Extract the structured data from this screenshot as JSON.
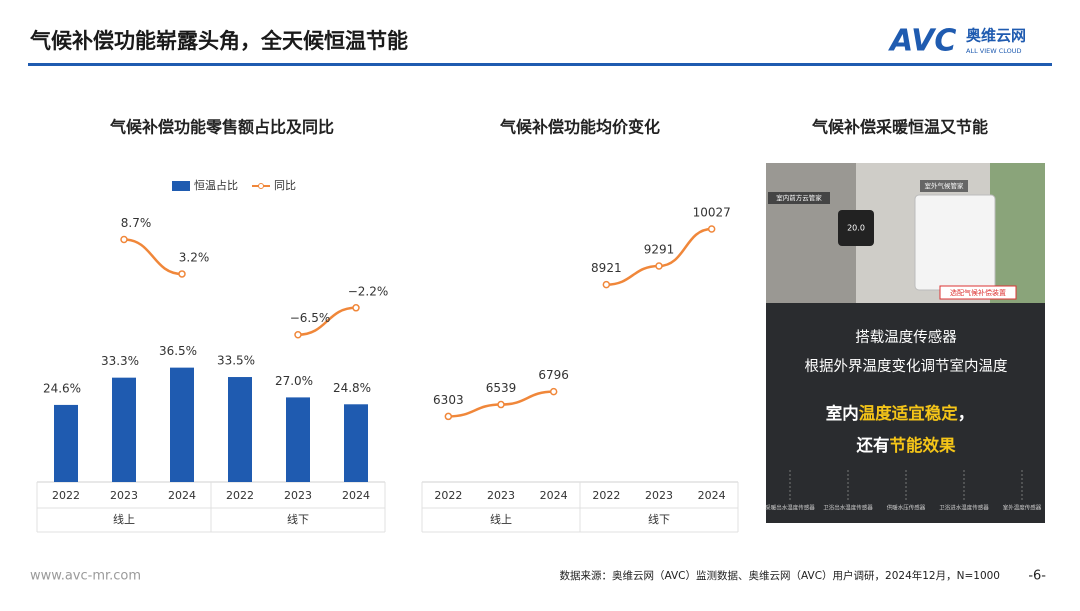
{
  "header": {
    "title": "气候补偿功能崭露头角，全天候恒温节能",
    "logo": "AVC",
    "brand": "奥维云网",
    "brand_en": "ALL VIEW CLOUD"
  },
  "chart_data": [
    {
      "type": "bar",
      "title": "气候补偿功能零售额占比及同比",
      "categories": [
        "2022",
        "2023",
        "2024",
        "2022",
        "2023",
        "2024"
      ],
      "groups": [
        "线上",
        "线下"
      ],
      "ylim": [
        0,
        90
      ],
      "y2lim": [
        -30,
        15
      ],
      "series": [
        {
          "name": "恒温占比",
          "color": "#1f5bb0",
          "values": [
            24.6,
            33.3,
            36.5,
            33.5,
            27.0,
            24.8
          ],
          "value_labels": [
            "24.6%",
            "33.3%",
            "36.5%",
            "33.5%",
            "27.0%",
            "24.8%"
          ]
        },
        {
          "name": "同比",
          "type": "line",
          "axis": "y2",
          "color": "#f0873a",
          "values": [
            null,
            8.7,
            3.2,
            null,
            -6.5,
            -2.2
          ],
          "value_labels": [
            null,
            "8.7%",
            "3.2%",
            null,
            "−6.5%",
            "−2.2%"
          ]
        }
      ]
    },
    {
      "type": "line",
      "title": "气候补偿功能均价变化",
      "categories": [
        "2022",
        "2023",
        "2024",
        "2022",
        "2023",
        "2024"
      ],
      "groups": [
        "线上",
        "线下"
      ],
      "ylim": [
        5000,
        11000
      ],
      "color": "#f0873a",
      "values": [
        6303,
        6539,
        6796,
        8921,
        9291,
        10027
      ]
    }
  ],
  "panel": {
    "title": "气候补偿采暖恒温又节能",
    "tag1": "室内前方云管家",
    "tag2": "室外气候管家",
    "display": "20.0",
    "tag3": "选配气候补偿装置",
    "line1": "搭载温度传感器",
    "line2": "根据外界温度变化调节室内温度",
    "line3a": "室内",
    "line3b": "温度适宜稳定",
    "line3c": "，",
    "line4a": "还有",
    "line4b": "节能效果",
    "sensors": [
      "采暖出水温度传感器",
      "卫浴出水温度传感器",
      "供暖水压传感器",
      "卫浴进水温度传感器",
      "室外温度传感器"
    ]
  },
  "footer": {
    "site": "www.avc-mr.com",
    "source": "数据来源：奥维云网（AVC）监测数据、奥维云网（AVC）用户调研，2024年12月，N=1000",
    "page": "-6-"
  }
}
